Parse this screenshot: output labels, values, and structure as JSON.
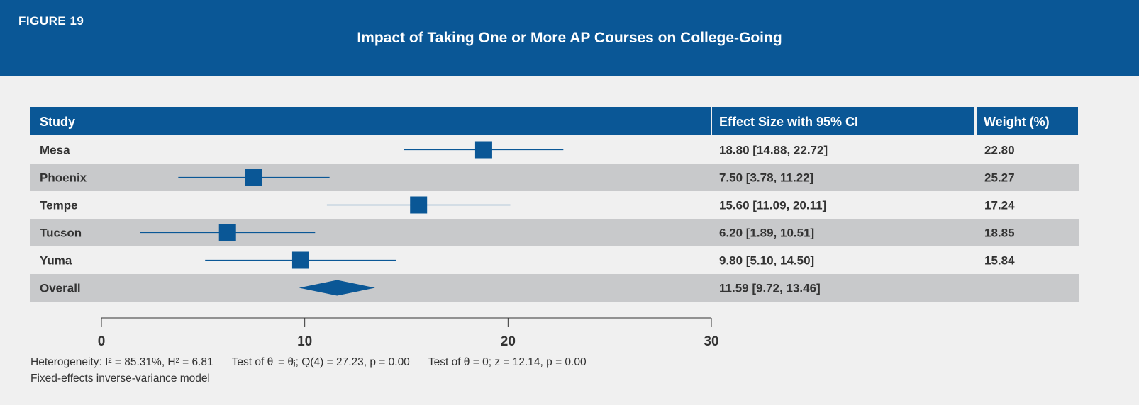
{
  "header": {
    "figure_label": "FIGURE 19",
    "title": "Impact of Taking One or More AP Courses on College-Going"
  },
  "table": {
    "col_study": "Study",
    "col_effect": "Effect Size with 95% CI",
    "col_weight": "Weight (%)"
  },
  "chart_data": {
    "type": "forest",
    "title": "Impact of Taking One or More AP Courses on College-Going",
    "xlim": [
      0,
      30
    ],
    "x_ticks": [
      0,
      10,
      20,
      30
    ],
    "studies": [
      {
        "name": "Mesa",
        "effect": 18.8,
        "ci_low": 14.88,
        "ci_high": 22.72,
        "effect_text": "18.80 [14.88, 22.72]",
        "weight": 22.8,
        "weight_text": "22.80"
      },
      {
        "name": "Phoenix",
        "effect": 7.5,
        "ci_low": 3.78,
        "ci_high": 11.22,
        "effect_text": "7.50 [3.78, 11.22]",
        "weight": 25.27,
        "weight_text": "25.27"
      },
      {
        "name": "Tempe",
        "effect": 15.6,
        "ci_low": 11.09,
        "ci_high": 20.11,
        "effect_text": "15.60 [11.09, 20.11]",
        "weight": 17.24,
        "weight_text": "17.24"
      },
      {
        "name": "Tucson",
        "effect": 6.2,
        "ci_low": 1.89,
        "ci_high": 10.51,
        "effect_text": "6.20 [1.89, 10.51]",
        "weight": 18.85,
        "weight_text": "18.85"
      },
      {
        "name": "Yuma",
        "effect": 9.8,
        "ci_low": 5.1,
        "ci_high": 14.5,
        "effect_text": "9.80 [5.10, 14.50]",
        "weight": 15.84,
        "weight_text": "15.84"
      }
    ],
    "overall": {
      "name": "Overall",
      "effect": 11.59,
      "ci_low": 9.72,
      "ci_high": 13.46,
      "effect_text": "11.59 [9.72, 13.46]"
    }
  },
  "notes": {
    "heterogeneity": "Heterogeneity: I² = 85.31%, H² = 6.81",
    "test_theta_equal": "Test of θᵢ = θⱼ; Q(4) = 27.23, p = 0.00",
    "test_theta_zero": "Test of θ = 0; z = 12.14, p = 0.00",
    "model": "Fixed-effects inverse-variance model"
  },
  "colors": {
    "brand_blue": "#0a5796",
    "row_shade": "#c8c9cb",
    "background": "#f0f0f0",
    "text": "#333333"
  }
}
